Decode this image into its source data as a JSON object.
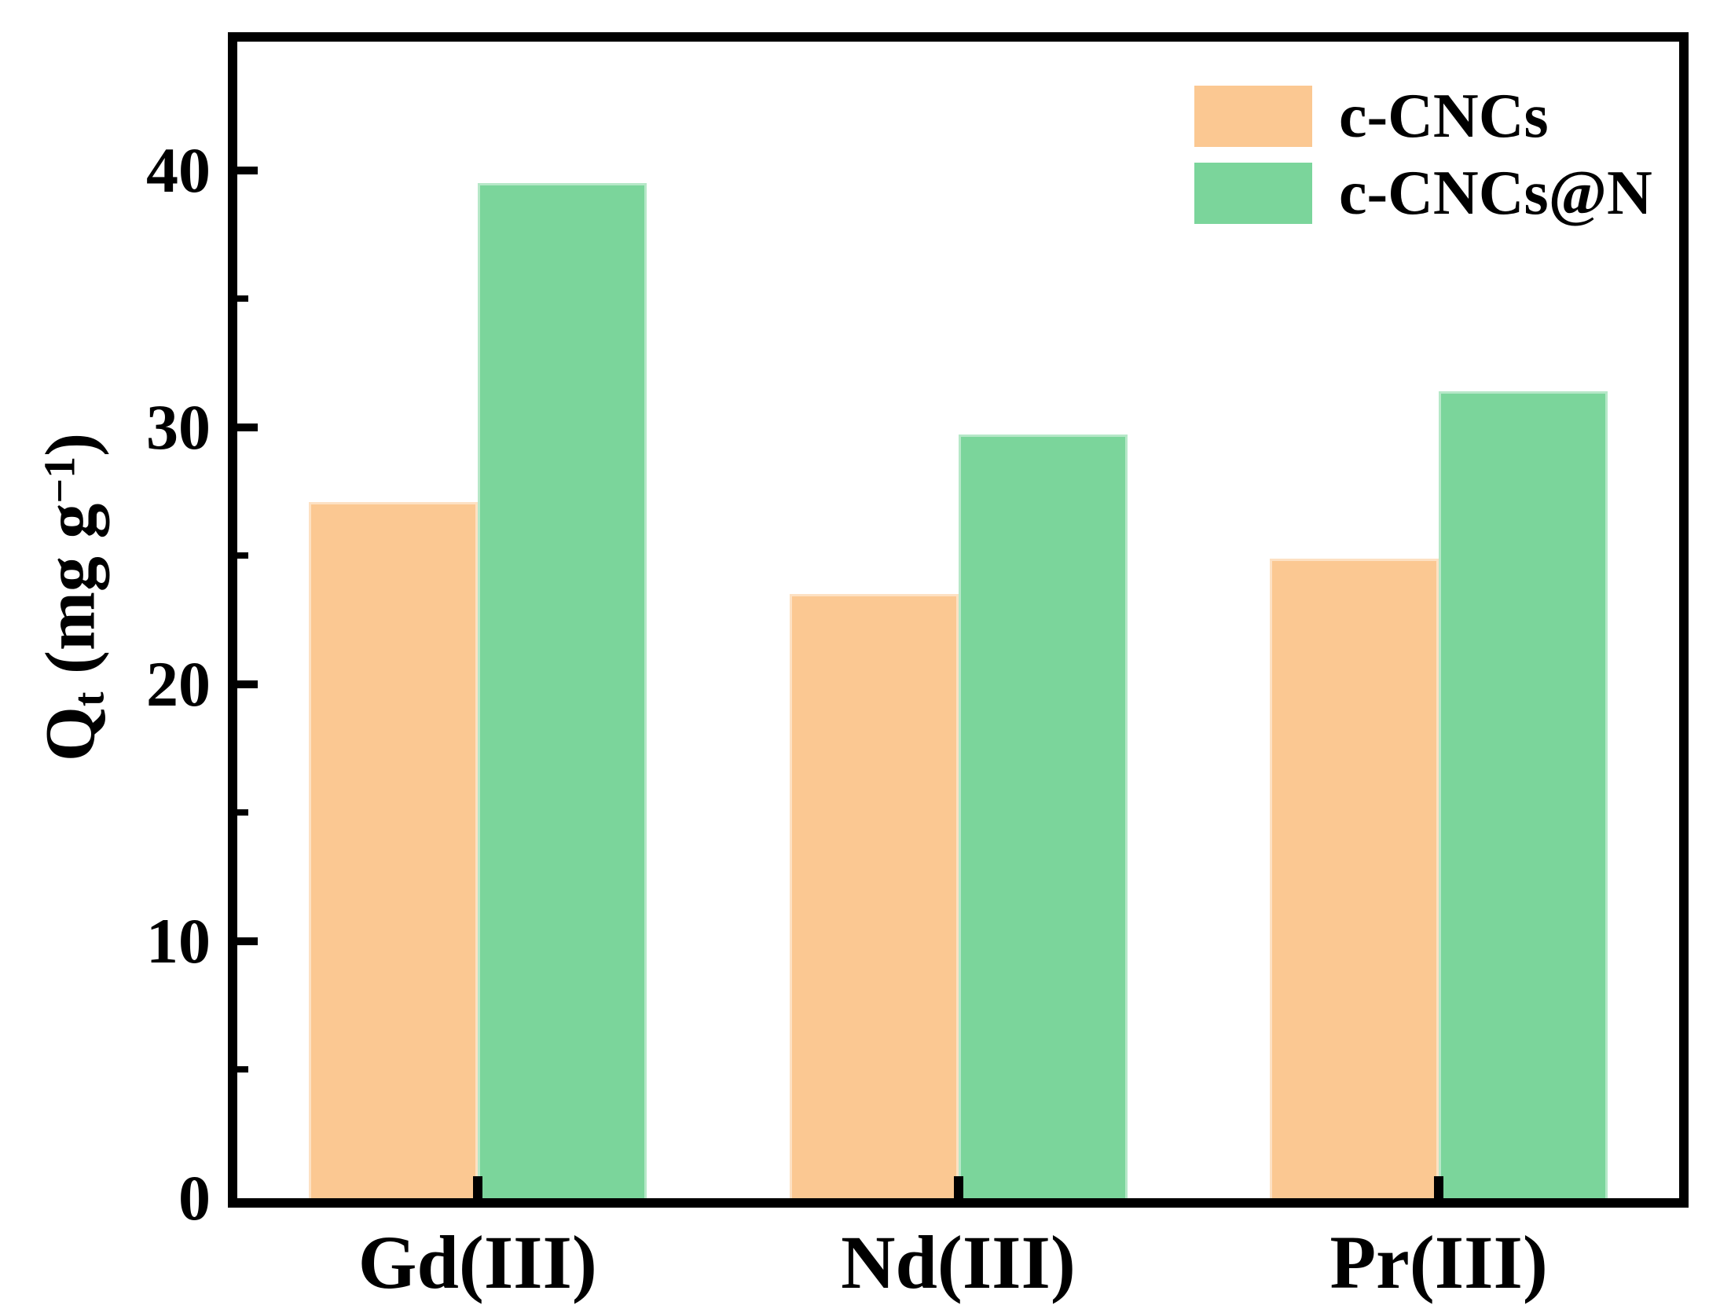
{
  "figure": {
    "background": "#ffffff",
    "axis_color": "#000000",
    "text_color": "#000000"
  },
  "chart_data": {
    "type": "bar",
    "title": "",
    "categories": [
      "Gd(III)",
      "Nd(III)",
      "Pr(III)"
    ],
    "series": [
      {
        "name": "c-CNCs",
        "color": "#FBC892",
        "values": [
          27.1,
          23.5,
          24.9
        ]
      },
      {
        "name": "c-CNCs@N",
        "color": "#7BD59B",
        "values": [
          39.5,
          29.7,
          31.4
        ]
      }
    ],
    "xlabel": "",
    "ylabel": "Qt (mg g−1)",
    "ylabel_parts": {
      "base": "Q",
      "sub": "t",
      "mid": " (mg g",
      "sup": "−1",
      "end": ")"
    },
    "ylim": [
      0,
      45
    ],
    "yticks_major": [
      0,
      10,
      20,
      30,
      40
    ],
    "ytick_labels": [
      "0",
      "10",
      "20",
      "30",
      "40"
    ],
    "yticks_minor": [
      5,
      15,
      25,
      35
    ],
    "grid": false,
    "tick_direction": "in",
    "legend": {
      "position": "top-right",
      "items": [
        {
          "label": "c-CNCs",
          "color": "#FBC892"
        },
        {
          "label": "c-CNCs@N",
          "color": "#7BD59B"
        }
      ]
    }
  }
}
